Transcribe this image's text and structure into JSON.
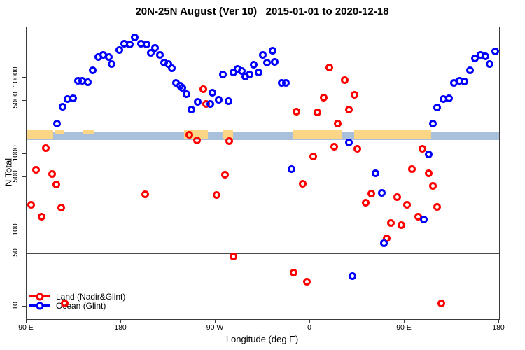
{
  "title": "20N-25N August (Ver 10)   2015-01-01 to 2020-12-18",
  "axes": {
    "x": {
      "label": "Longitude (deg E)",
      "ticks": [
        {
          "lon": 90,
          "label": "90 E"
        },
        {
          "lon": 180,
          "label": "180"
        },
        {
          "lon": 270,
          "label": "90 W"
        },
        {
          "lon": 360,
          "label": "0"
        },
        {
          "lon": 450,
          "label": "90 E"
        },
        {
          "lon": 540,
          "label": "180"
        }
      ]
    },
    "y": {
      "label": "N Total",
      "scale": "log",
      "ticks": [
        {
          "value": 10,
          "label": "10"
        },
        {
          "value": 50,
          "label": "50"
        },
        {
          "value": 100,
          "label": "100"
        },
        {
          "value": 500,
          "label": "500"
        },
        {
          "value": 1000,
          "label": "1000"
        },
        {
          "value": 5000,
          "label": "5000"
        },
        {
          "value": 10000,
          "label": "10000"
        }
      ]
    }
  },
  "reference_line": {
    "value": 50,
    "color": "#4a4a4a"
  },
  "map_band": {
    "description": "latitude-band world map strip: ocean and land along 20N-25N",
    "ocean_color": "#a9c0dc",
    "land_color": "#fbd687",
    "value_range": [
      1500,
      2100
    ],
    "land_segments_lon": [
      {
        "lon": [
          90,
          115.3
        ],
        "partial": false
      },
      {
        "lon": [
          117.5,
          125
        ],
        "partial": true
      },
      {
        "lon": [
          144,
          154
        ],
        "partial": true
      },
      {
        "lon": [
          240,
          262.7
        ],
        "partial": false
      },
      {
        "lon": [
          277.3,
          286.7
        ],
        "partial": false
      },
      {
        "lon": [
          344,
          390
        ],
        "partial": false
      },
      {
        "lon": [
          402,
          475
        ],
        "partial": false
      }
    ]
  },
  "legend": [
    {
      "label": "Land (Nadir&Glint)",
      "color": "#ff0000"
    },
    {
      "label": "Ocean (Glint)",
      "color": "#0000ff"
    }
  ],
  "chart_data": {
    "type": "scatter",
    "title": "20N-25N August (Ver 10)   2015-01-01 to 2020-12-18",
    "xlabel": "Longitude (deg E)",
    "ylabel": "N Total",
    "x_range_deg_e": [
      90,
      540
    ],
    "y_scale": "log",
    "y_range": [
      8,
      40000
    ],
    "legend_position": "bottom-left",
    "series": [
      {
        "name": "Land (Nadir&Glint)",
        "color": "#ff0000",
        "points": [
          [
            108,
            1200
          ],
          [
            99,
            620
          ],
          [
            114,
            550
          ],
          [
            118,
            395
          ],
          [
            94,
            215
          ],
          [
            123,
            200
          ],
          [
            104,
            152
          ],
          [
            126,
            11
          ],
          [
            203,
            295
          ],
          [
            245,
            1770
          ],
          [
            252,
            1520
          ],
          [
            258,
            7100
          ],
          [
            261,
            4500
          ],
          [
            271,
            290
          ],
          [
            279,
            540
          ],
          [
            283,
            1470
          ],
          [
            287,
            45
          ],
          [
            344,
            28
          ],
          [
            347,
            3600
          ],
          [
            353,
            405
          ],
          [
            357,
            21
          ],
          [
            363,
            920
          ],
          [
            367,
            3550
          ],
          [
            373,
            5500
          ],
          [
            378,
            13700
          ],
          [
            383,
            1240
          ],
          [
            386,
            2530
          ],
          [
            393,
            9200
          ],
          [
            397,
            3860
          ],
          [
            402,
            5900
          ],
          [
            405,
            1160
          ],
          [
            413,
            230
          ],
          [
            418,
            300
          ],
          [
            433,
            78
          ],
          [
            437,
            124
          ],
          [
            443,
            270
          ],
          [
            447,
            116
          ],
          [
            452,
            215
          ],
          [
            457,
            630
          ],
          [
            463,
            152
          ],
          [
            467,
            1180
          ],
          [
            473,
            555
          ],
          [
            477,
            385
          ],
          [
            481,
            205
          ],
          [
            485,
            11
          ]
        ]
      },
      {
        "name": "Ocean (Glint)",
        "color": "#0000ff",
        "points": [
          [
            119,
            2530
          ],
          [
            124,
            4200
          ],
          [
            129,
            5200
          ],
          [
            134,
            5400
          ],
          [
            139,
            9000
          ],
          [
            143,
            9000
          ],
          [
            148,
            8800
          ],
          [
            153,
            12400
          ],
          [
            158,
            18500
          ],
          [
            163,
            19700
          ],
          [
            168,
            18500
          ],
          [
            171,
            15200
          ],
          [
            178,
            22800
          ],
          [
            183,
            27600
          ],
          [
            188,
            27000
          ],
          [
            193,
            34000
          ],
          [
            199,
            27600
          ],
          [
            204,
            27000
          ],
          [
            208,
            21000
          ],
          [
            212,
            24300
          ],
          [
            217,
            19700
          ],
          [
            221,
            15900
          ],
          [
            225,
            15200
          ],
          [
            228,
            13400
          ],
          [
            232,
            8450
          ],
          [
            236,
            7900
          ],
          [
            238,
            7300
          ],
          [
            242,
            6150
          ],
          [
            247,
            3860
          ],
          [
            253,
            4800
          ],
          [
            265,
            4500
          ],
          [
            267,
            6400
          ],
          [
            273,
            5100
          ],
          [
            277,
            11100
          ],
          [
            282,
            4900
          ],
          [
            287,
            11600
          ],
          [
            291,
            12900
          ],
          [
            295,
            12300
          ],
          [
            298,
            10400
          ],
          [
            302,
            10900
          ],
          [
            306,
            14900
          ],
          [
            311,
            11600
          ],
          [
            315,
            19700
          ],
          [
            319,
            15900
          ],
          [
            324,
            22500
          ],
          [
            326,
            16000
          ],
          [
            333,
            8500
          ],
          [
            337,
            8600
          ],
          [
            342,
            630
          ],
          [
            397,
            1430
          ],
          [
            400,
            25
          ],
          [
            422,
            555
          ],
          [
            428,
            310
          ],
          [
            430,
            67
          ],
          [
            468,
            140
          ],
          [
            473,
            1000
          ],
          [
            477,
            2530
          ],
          [
            481,
            4100
          ],
          [
            487,
            5300
          ],
          [
            492,
            5400
          ],
          [
            497,
            8600
          ],
          [
            502,
            9000
          ],
          [
            507,
            8900
          ],
          [
            512,
            12400
          ],
          [
            517,
            18000
          ],
          [
            522,
            19700
          ],
          [
            527,
            18900
          ],
          [
            531,
            15200
          ],
          [
            536,
            22300
          ]
        ]
      }
    ]
  }
}
